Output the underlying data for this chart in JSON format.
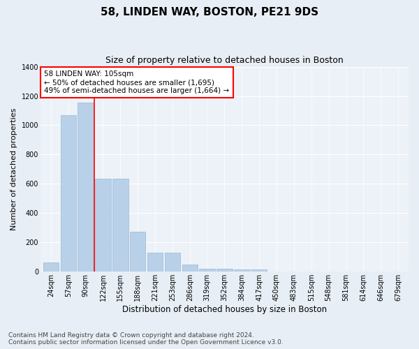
{
  "title": "58, LINDEN WAY, BOSTON, PE21 9DS",
  "subtitle": "Size of property relative to detached houses in Boston",
  "xlabel": "Distribution of detached houses by size in Boston",
  "ylabel": "Number of detached properties",
  "categories": [
    "24sqm",
    "57sqm",
    "90sqm",
    "122sqm",
    "155sqm",
    "188sqm",
    "221sqm",
    "253sqm",
    "286sqm",
    "319sqm",
    "352sqm",
    "384sqm",
    "417sqm",
    "450sqm",
    "483sqm",
    "515sqm",
    "548sqm",
    "581sqm",
    "614sqm",
    "646sqm",
    "679sqm"
  ],
  "values": [
    65,
    1070,
    1155,
    635,
    635,
    275,
    130,
    130,
    48,
    22,
    22,
    18,
    18,
    0,
    0,
    0,
    0,
    0,
    0,
    0,
    0
  ],
  "bar_color": "#b8d0e8",
  "bar_edge_color": "#9ab8d4",
  "vline_x": 2.5,
  "vline_color": "red",
  "annotation_text": "58 LINDEN WAY: 105sqm\n← 50% of detached houses are smaller (1,695)\n49% of semi-detached houses are larger (1,664) →",
  "annotation_box_color": "white",
  "annotation_box_edge_color": "red",
  "ylim": [
    0,
    1400
  ],
  "yticks": [
    0,
    200,
    400,
    600,
    800,
    1000,
    1200,
    1400
  ],
  "bg_color": "#e8eef5",
  "plot_bg_color": "#edf2f8",
  "footer_line1": "Contains HM Land Registry data © Crown copyright and database right 2024.",
  "footer_line2": "Contains public sector information licensed under the Open Government Licence v3.0.",
  "title_fontsize": 11,
  "subtitle_fontsize": 9,
  "xlabel_fontsize": 8.5,
  "ylabel_fontsize": 8,
  "tick_fontsize": 7,
  "footer_fontsize": 6.5,
  "grid_color": "#ffffff",
  "annot_fontsize": 7.5
}
